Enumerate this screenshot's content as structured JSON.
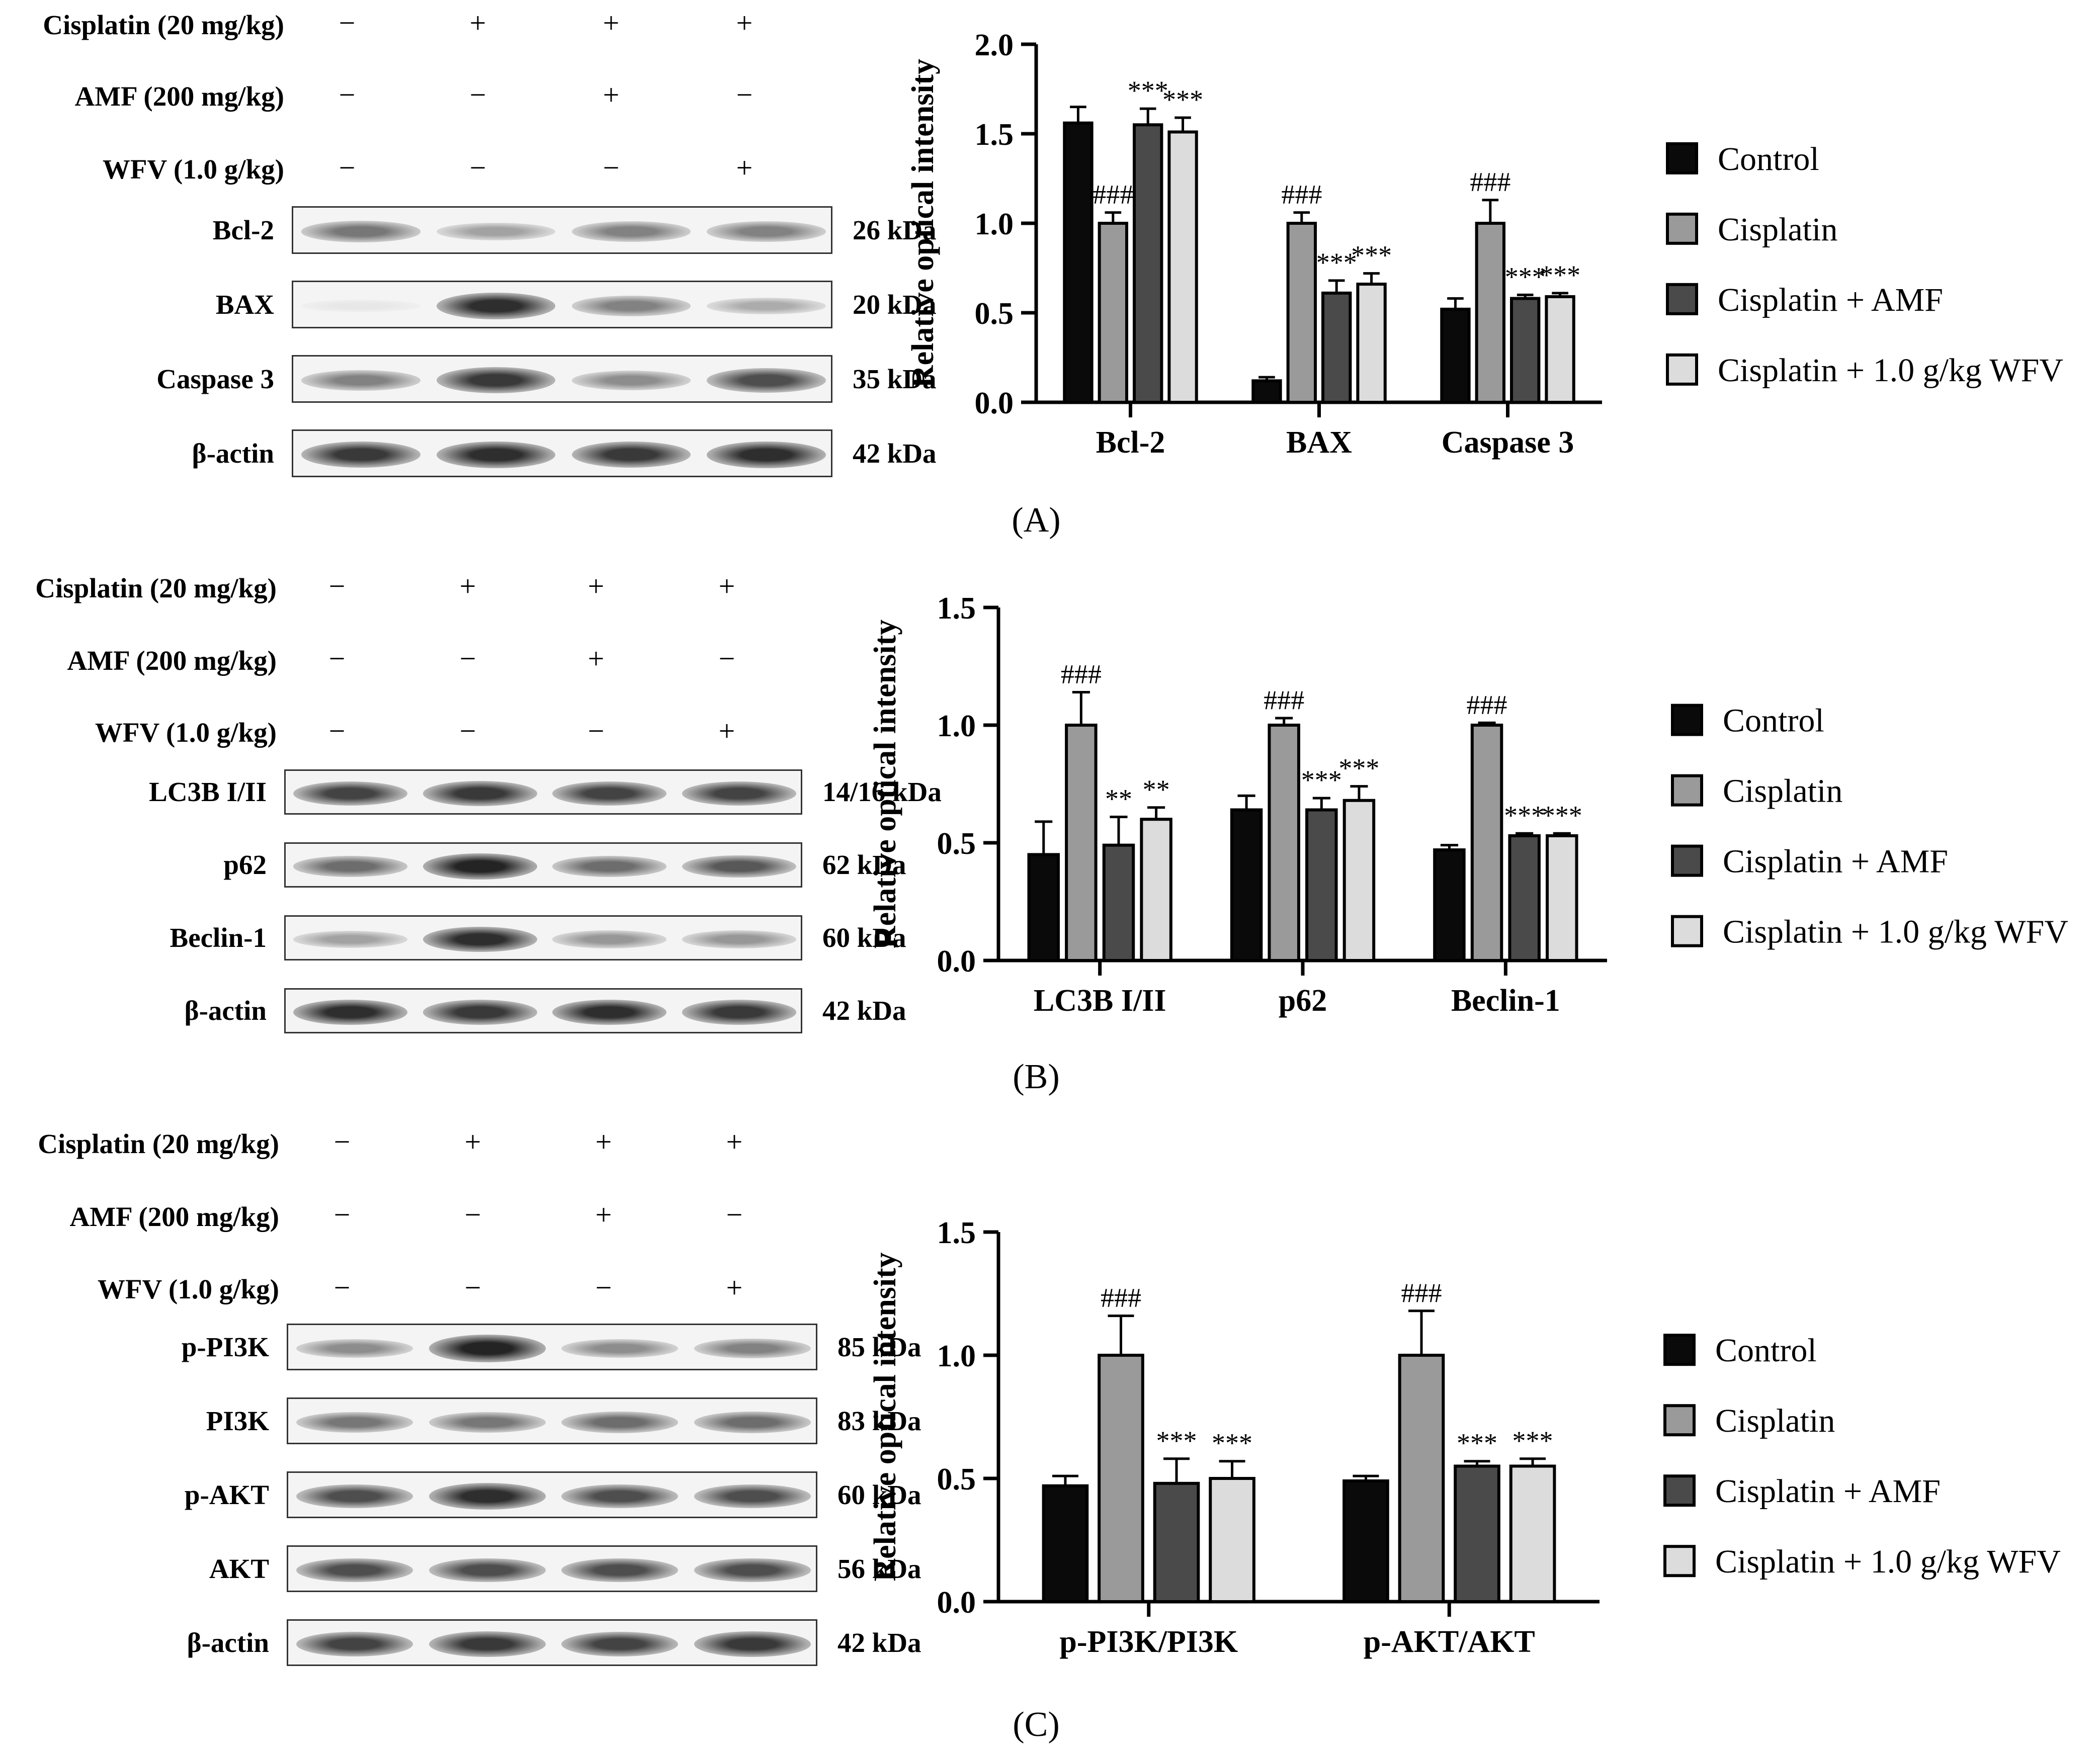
{
  "panels": [
    {
      "letter": "(A)",
      "treatments": [
        {
          "label": "Cisplatin (20 mg/kg)",
          "signs": [
            "−",
            "+",
            "+",
            "+"
          ]
        },
        {
          "label": "AMF (200 mg/kg)",
          "signs": [
            "−",
            "−",
            "+",
            "−"
          ]
        },
        {
          "label": "WFV (1.0 g/kg)",
          "signs": [
            "−",
            "−",
            "−",
            "+"
          ]
        }
      ],
      "blots": [
        {
          "label": "Bcl-2",
          "kda": "26 kDa",
          "intensity": [
            0.55,
            0.35,
            0.5,
            0.5
          ]
        },
        {
          "label": "BAX",
          "kda": "20 kDa",
          "intensity": [
            0.02,
            0.9,
            0.5,
            0.3
          ]
        },
        {
          "label": "Caspase 3",
          "kda": "35 kDa",
          "intensity": [
            0.5,
            0.85,
            0.45,
            0.75
          ]
        },
        {
          "label": "β-actin",
          "kda": "42 kDa",
          "intensity": [
            0.85,
            0.9,
            0.85,
            0.9
          ]
        }
      ]
    },
    {
      "letter": "(B)",
      "treatments": [
        {
          "label": "Cisplatin (20 mg/kg)",
          "signs": [
            "−",
            "+",
            "+",
            "+"
          ]
        },
        {
          "label": "AMF (200 mg/kg)",
          "signs": [
            "−",
            "−",
            "+",
            "−"
          ]
        },
        {
          "label": "WFV (1.0 g/kg)",
          "signs": [
            "−",
            "−",
            "−",
            "+"
          ]
        }
      ],
      "blots": [
        {
          "label": "LC3B I/II",
          "kda": "14/16 kDa",
          "intensity": [
            0.8,
            0.85,
            0.8,
            0.8
          ]
        },
        {
          "label": "p62",
          "kda": "62 kDa",
          "intensity": [
            0.6,
            0.95,
            0.6,
            0.7
          ]
        },
        {
          "label": "Beclin-1",
          "kda": "60 kDa",
          "intensity": [
            0.35,
            0.9,
            0.4,
            0.4
          ]
        },
        {
          "label": "β-actin",
          "kda": "42 kDa",
          "intensity": [
            0.9,
            0.85,
            0.9,
            0.85
          ]
        }
      ]
    },
    {
      "letter": "(C)",
      "treatments": [
        {
          "label": "Cisplatin (20 mg/kg)",
          "signs": [
            "−",
            "+",
            "+",
            "+"
          ]
        },
        {
          "label": "AMF (200 mg/kg)",
          "signs": [
            "−",
            "−",
            "+",
            "−"
          ]
        },
        {
          "label": "WFV (1.0 g/kg)",
          "signs": [
            "−",
            "−",
            "−",
            "+"
          ]
        }
      ],
      "blots": [
        {
          "label": "p-PI3K",
          "kda": "85 kDa",
          "intensity": [
            0.45,
            0.95,
            0.45,
            0.5
          ]
        },
        {
          "label": "PI3K",
          "kda": "83 kDa",
          "intensity": [
            0.55,
            0.55,
            0.6,
            0.6
          ]
        },
        {
          "label": "p-AKT",
          "kda": "60 kDa",
          "intensity": [
            0.75,
            0.9,
            0.75,
            0.75
          ]
        },
        {
          "label": "AKT",
          "kda": "56 kDa",
          "intensity": [
            0.75,
            0.75,
            0.75,
            0.75
          ]
        },
        {
          "label": "β-actin",
          "kda": "42 kDa",
          "intensity": [
            0.8,
            0.85,
            0.8,
            0.85
          ]
        }
      ]
    }
  ],
  "colors": {
    "Control": "#0a0a0a",
    "Cisplatin": "#9a9a9a",
    "Cisplatin + AMF": "#4a4a4a",
    "Cisplatin + 1.0 g/kg WFV": "#dcdcdc"
  },
  "chart_data": [
    {
      "type": "bar",
      "ylabel": "Relative optical intensity",
      "ylim": [
        0,
        2.0
      ],
      "yticks": [
        "0.0",
        "0.5",
        "1.0",
        "1.5",
        "2.0"
      ],
      "categories": [
        "Bcl-2",
        "BAX",
        "Caspase 3"
      ],
      "series": [
        {
          "name": "Control",
          "values": [
            1.56,
            0.12,
            0.52
          ],
          "errors": [
            0.09,
            0.02,
            0.06
          ],
          "marks": [
            "",
            "",
            ""
          ]
        },
        {
          "name": "Cisplatin",
          "values": [
            1.0,
            1.0,
            1.0
          ],
          "errors": [
            0.06,
            0.06,
            0.13
          ],
          "marks": [
            "###",
            "###",
            "###"
          ]
        },
        {
          "name": "Cisplatin + AMF",
          "values": [
            1.55,
            0.61,
            0.58
          ],
          "errors": [
            0.09,
            0.07,
            0.02
          ],
          "marks": [
            "***",
            "***",
            "***"
          ]
        },
        {
          "name": "Cisplatin + 1.0 g/kg WFV",
          "values": [
            1.51,
            0.66,
            0.59
          ],
          "errors": [
            0.08,
            0.06,
            0.02
          ],
          "marks": [
            "***",
            "***",
            "***"
          ]
        }
      ]
    },
    {
      "type": "bar",
      "ylabel": "Relative optical intensity",
      "ylim": [
        0,
        1.5
      ],
      "yticks": [
        "0.0",
        "0.5",
        "1.0",
        "1.5"
      ],
      "categories": [
        "LC3B I/II",
        "p62",
        "Beclin-1"
      ],
      "series": [
        {
          "name": "Control",
          "values": [
            0.45,
            0.64,
            0.47
          ],
          "errors": [
            0.14,
            0.06,
            0.02
          ],
          "marks": [
            "",
            "",
            ""
          ]
        },
        {
          "name": "Cisplatin",
          "values": [
            1.0,
            1.0,
            1.0
          ],
          "errors": [
            0.14,
            0.03,
            0.01
          ],
          "marks": [
            "###",
            "###",
            "###"
          ]
        },
        {
          "name": "Cisplatin + AMF",
          "values": [
            0.49,
            0.64,
            0.53
          ],
          "errors": [
            0.12,
            0.05,
            0.01
          ],
          "marks": [
            "**",
            "***",
            "***"
          ]
        },
        {
          "name": "Cisplatin + 1.0 g/kg WFV",
          "values": [
            0.6,
            0.68,
            0.53
          ],
          "errors": [
            0.05,
            0.06,
            0.01
          ],
          "marks": [
            "**",
            "***",
            "***"
          ]
        }
      ]
    },
    {
      "type": "bar",
      "ylabel": "Relative optical intensity",
      "ylim": [
        0,
        1.5
      ],
      "yticks": [
        "0.0",
        "0.5",
        "1.0",
        "1.5"
      ],
      "categories": [
        "p-PI3K/PI3K",
        "p-AKT/AKT"
      ],
      "series": [
        {
          "name": "Control",
          "values": [
            0.47,
            0.49
          ],
          "errors": [
            0.04,
            0.02
          ],
          "marks": [
            "",
            ""
          ]
        },
        {
          "name": "Cisplatin",
          "values": [
            1.0,
            1.0
          ],
          "errors": [
            0.16,
            0.18
          ],
          "marks": [
            "###",
            "###"
          ]
        },
        {
          "name": "Cisplatin + AMF",
          "values": [
            0.48,
            0.55
          ],
          "errors": [
            0.1,
            0.02
          ],
          "marks": [
            "***",
            "***"
          ]
        },
        {
          "name": "Cisplatin + 1.0 g/kg WFV",
          "values": [
            0.5,
            0.55
          ],
          "errors": [
            0.07,
            0.03
          ],
          "marks": [
            "***",
            "***"
          ]
        }
      ]
    }
  ]
}
